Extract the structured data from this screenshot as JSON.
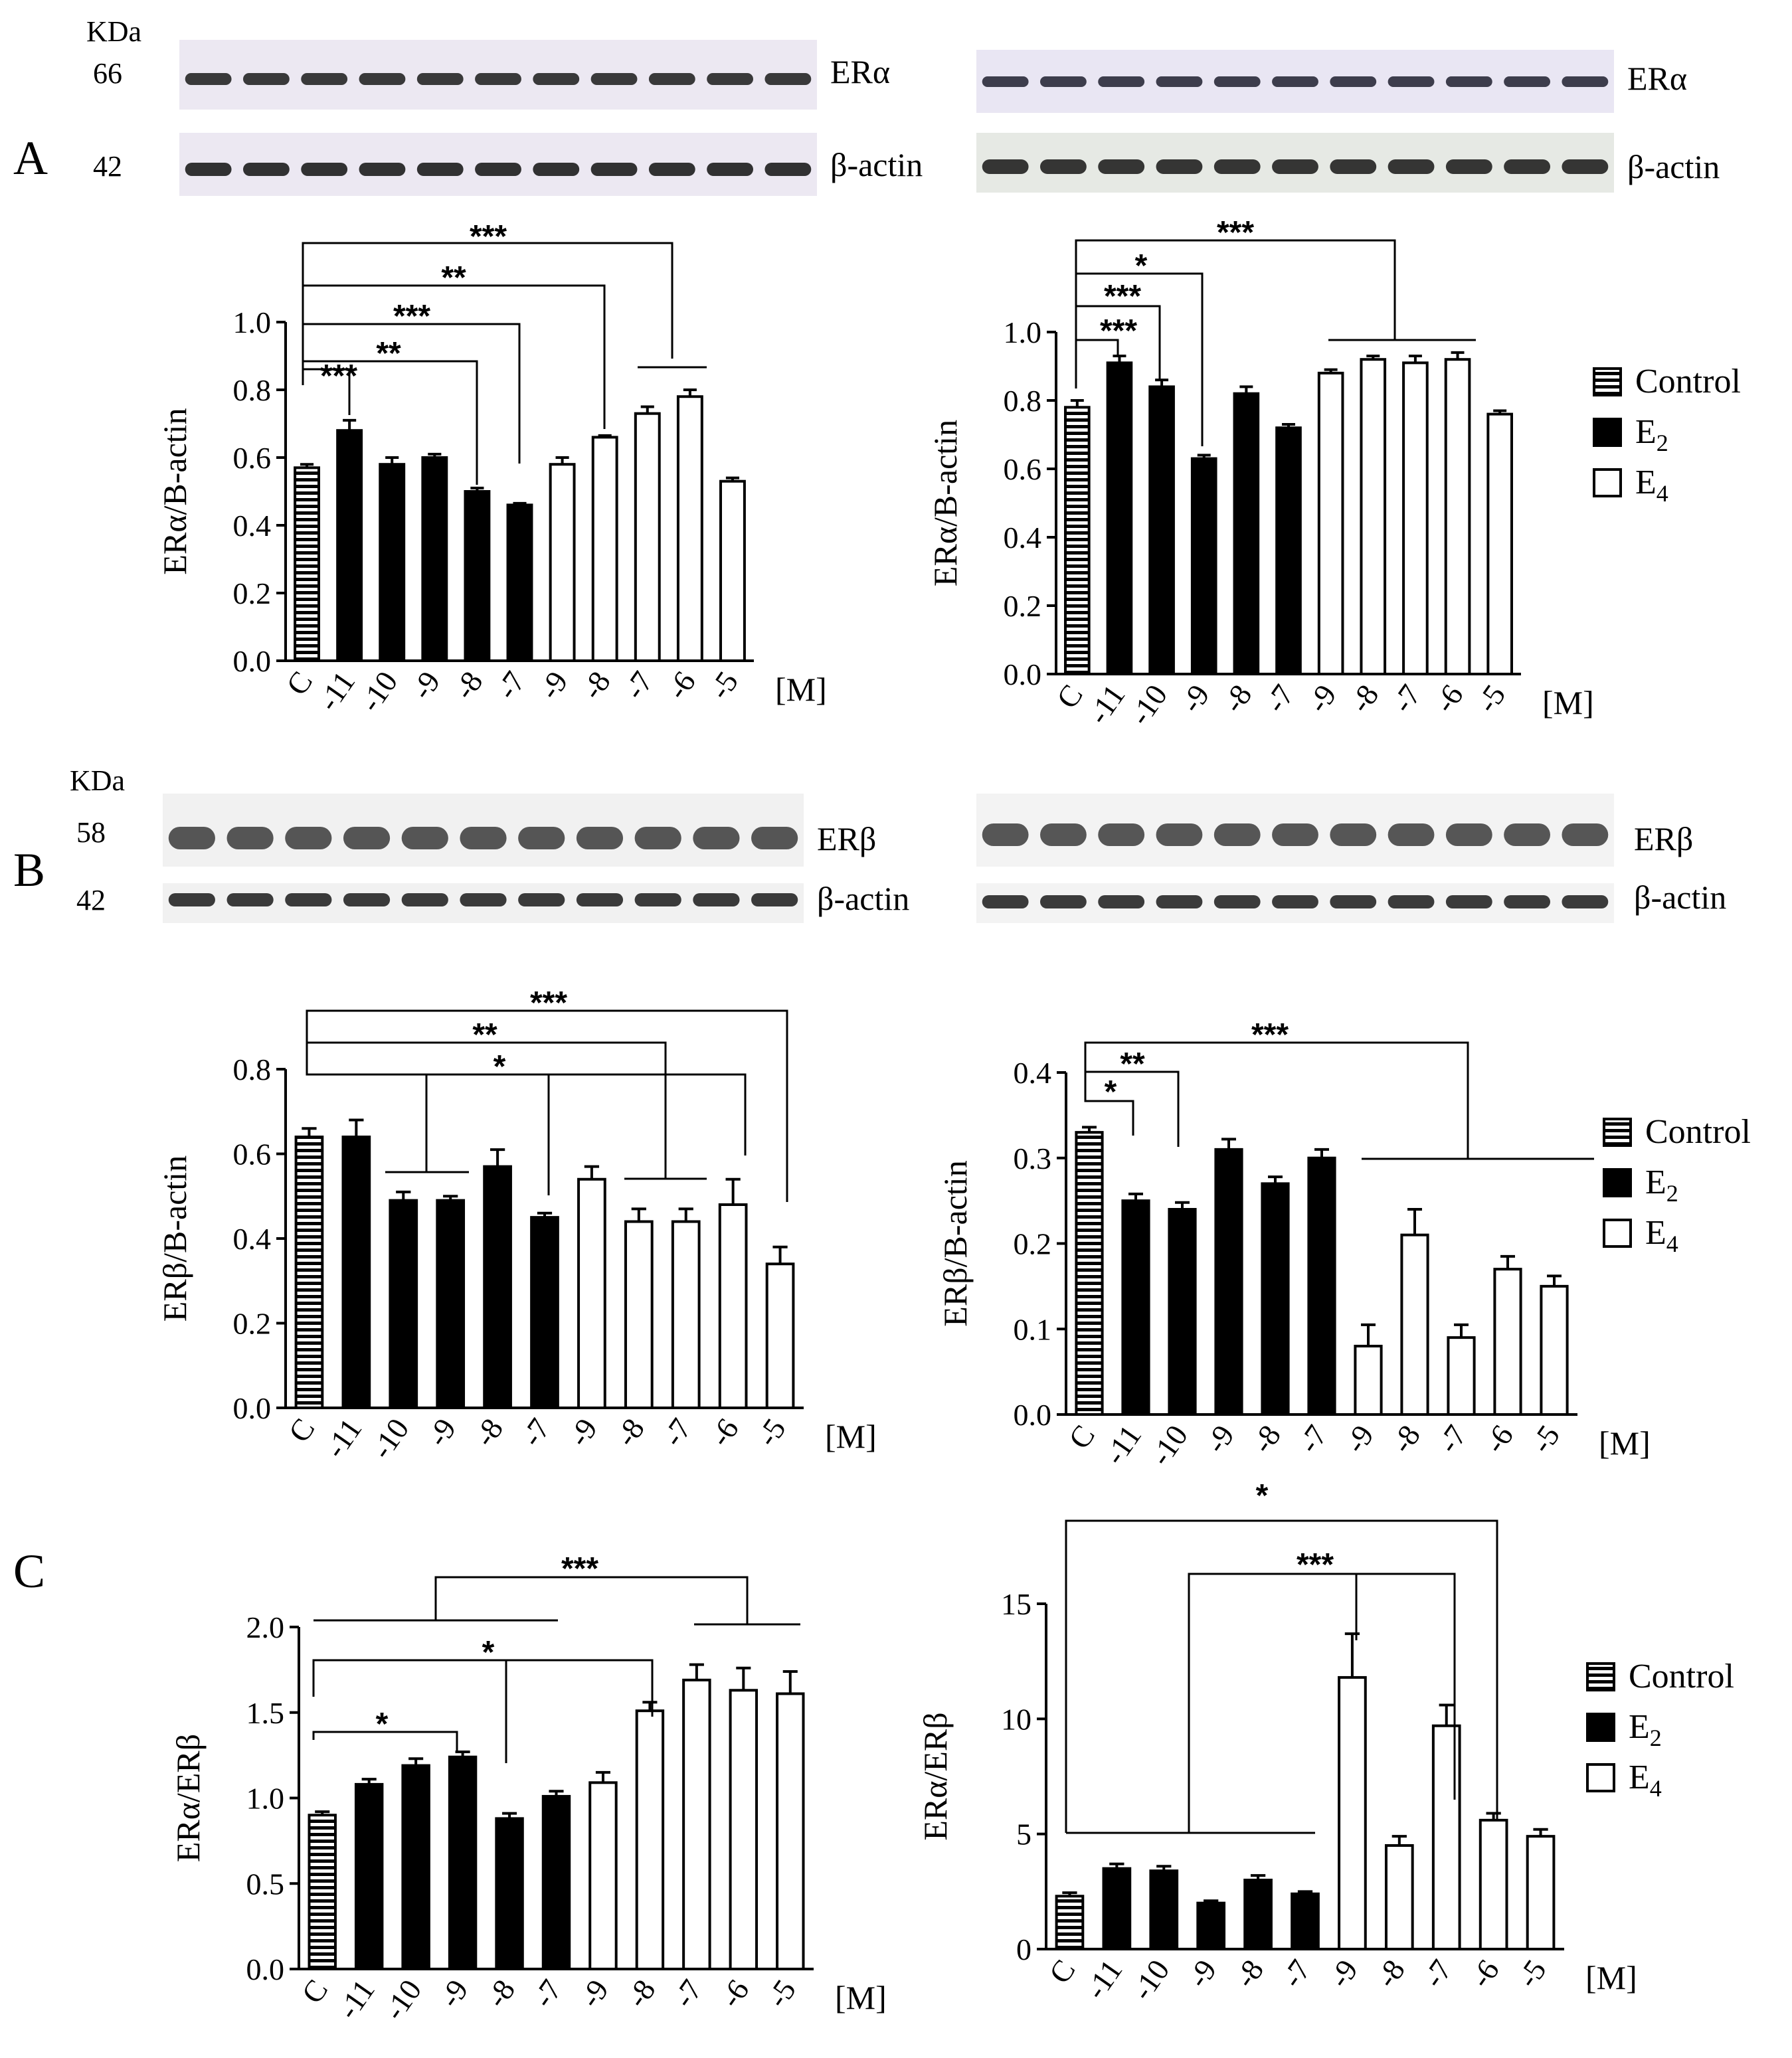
{
  "panel_labels": [
    "A",
    "B",
    "C"
  ],
  "blots": [
    {
      "panel": "A",
      "side": "left",
      "kda_label": "KDa",
      "top_kda": "66",
      "bottom_kda": "42",
      "top_label": "ERα",
      "bottom_label": "β-actin"
    },
    {
      "panel": "A",
      "side": "right",
      "kda_label": "",
      "top_kda": "",
      "bottom_kda": "",
      "top_label": "ERα",
      "bottom_label": "β-actin"
    },
    {
      "panel": "B",
      "side": "left",
      "kda_label": "KDa",
      "top_kda": "58",
      "bottom_kda": "42",
      "top_label": "ERβ",
      "bottom_label": "β-actin"
    },
    {
      "panel": "B",
      "side": "right",
      "kda_label": "",
      "top_kda": "",
      "bottom_kda": "",
      "top_label": "ERβ",
      "bottom_label": "β-actin"
    }
  ],
  "legends": [
    {
      "items": [
        {
          "label": "Control",
          "style": "striped"
        },
        {
          "label": "E",
          "sub": "2",
          "style": "filled"
        },
        {
          "label": "E",
          "sub": "4",
          "style": "open"
        }
      ]
    },
    {
      "items": [
        {
          "label": "Control",
          "style": "striped"
        },
        {
          "label": "E",
          "sub": "2",
          "style": "filled"
        },
        {
          "label": "E",
          "sub": "4",
          "style": "open"
        }
      ]
    },
    {
      "items": [
        {
          "label": "Control",
          "style": "striped"
        },
        {
          "label": "E",
          "sub": "2",
          "style": "filled"
        },
        {
          "label": "E",
          "sub": "4",
          "style": "open"
        }
      ]
    }
  ],
  "chart_data": [
    {
      "id": "A-left",
      "type": "bar",
      "title": "",
      "xlabel": "[M]",
      "ylabel": "ERα/B-actin",
      "categories": [
        "C",
        "-11",
        "-10",
        "-9",
        "-8",
        "-7",
        "-9",
        "-8",
        "-7",
        "-6",
        "-5"
      ],
      "groups": [
        "Control",
        "E2",
        "E2",
        "E2",
        "E2",
        "E2",
        "E4",
        "E4",
        "E4",
        "E4",
        "E4"
      ],
      "values": [
        0.57,
        0.68,
        0.58,
        0.6,
        0.5,
        0.46,
        0.58,
        0.66,
        0.73,
        0.78,
        0.53
      ],
      "errors": [
        0.01,
        0.03,
        0.02,
        0.01,
        0.01,
        0.005,
        0.02,
        0.005,
        0.02,
        0.02,
        0.01
      ],
      "ylim": [
        0,
        1.0
      ],
      "yticks": [
        "0.0",
        "0.2",
        "0.4",
        "0.6",
        "0.8",
        "1.0"
      ],
      "annotations": [
        "***",
        "**",
        "***",
        "**",
        "***"
      ]
    },
    {
      "id": "A-right",
      "type": "bar",
      "title": "",
      "xlabel": "[M]",
      "ylabel": "ERα/B-actin",
      "categories": [
        "C",
        "-11",
        "-10",
        "-9",
        "-8",
        "-7",
        "-9",
        "-8",
        "-7",
        "-6",
        "-5"
      ],
      "groups": [
        "Control",
        "E2",
        "E2",
        "E2",
        "E2",
        "E2",
        "E4",
        "E4",
        "E4",
        "E4",
        "E4"
      ],
      "values": [
        0.78,
        0.91,
        0.84,
        0.63,
        0.82,
        0.72,
        0.88,
        0.92,
        0.91,
        0.92,
        0.76
      ],
      "errors": [
        0.02,
        0.02,
        0.02,
        0.01,
        0.02,
        0.01,
        0.01,
        0.01,
        0.02,
        0.02,
        0.01
      ],
      "ylim": [
        0,
        1.0
      ],
      "yticks": [
        "0.0",
        "0.2",
        "0.4",
        "0.6",
        "0.8",
        "1.0"
      ],
      "annotations": [
        "***",
        "*",
        "***",
        "***"
      ]
    },
    {
      "id": "B-left",
      "type": "bar",
      "title": "",
      "xlabel": "[M]",
      "ylabel": "ERβ/B-actin",
      "categories": [
        "C",
        "-11",
        "-10",
        "-9",
        "-8",
        "-7",
        "-9",
        "-8",
        "-7",
        "-6",
        "-5"
      ],
      "groups": [
        "Control",
        "E2",
        "E2",
        "E2",
        "E2",
        "E2",
        "E4",
        "E4",
        "E4",
        "E4",
        "E4"
      ],
      "values": [
        0.64,
        0.64,
        0.49,
        0.49,
        0.57,
        0.45,
        0.54,
        0.44,
        0.44,
        0.48,
        0.34
      ],
      "errors": [
        0.02,
        0.04,
        0.02,
        0.01,
        0.04,
        0.01,
        0.03,
        0.03,
        0.03,
        0.06,
        0.04
      ],
      "ylim": [
        0,
        0.8
      ],
      "yticks": [
        "0.0",
        "0.2",
        "0.4",
        "0.6",
        "0.8"
      ],
      "annotations": [
        "***",
        "**",
        "*"
      ]
    },
    {
      "id": "B-right",
      "type": "bar",
      "title": "",
      "xlabel": "[M]",
      "ylabel": "ERβ/B-actin",
      "categories": [
        "C",
        "-11",
        "-10",
        "-9",
        "-8",
        "-7",
        "-9",
        "-8",
        "-7",
        "-6",
        "-5"
      ],
      "groups": [
        "Control",
        "E2",
        "E2",
        "E2",
        "E2",
        "E2",
        "E4",
        "E4",
        "E4",
        "E4",
        "E4"
      ],
      "values": [
        0.33,
        0.25,
        0.24,
        0.31,
        0.27,
        0.3,
        0.08,
        0.21,
        0.09,
        0.17,
        0.15
      ],
      "errors": [
        0.006,
        0.008,
        0.008,
        0.012,
        0.008,
        0.01,
        0.025,
        0.03,
        0.015,
        0.015,
        0.012
      ],
      "ylim": [
        0,
        0.4
      ],
      "yticks": [
        "0.0",
        "0.1",
        "0.2",
        "0.3",
        "0.4"
      ],
      "annotations": [
        "***",
        "**",
        "*"
      ]
    },
    {
      "id": "C-left",
      "type": "bar",
      "title": "",
      "xlabel": "[M]",
      "ylabel": "ERα/ERβ",
      "categories": [
        "C",
        "-11",
        "-10",
        "-9",
        "-8",
        "-7",
        "-9",
        "-8",
        "-7",
        "-6",
        "-5"
      ],
      "groups": [
        "Control",
        "E2",
        "E2",
        "E2",
        "E2",
        "E2",
        "E4",
        "E4",
        "E4",
        "E4",
        "E4"
      ],
      "values": [
        0.9,
        1.08,
        1.19,
        1.24,
        0.88,
        1.01,
        1.09,
        1.51,
        1.69,
        1.63,
        1.61
      ],
      "errors": [
        0.02,
        0.03,
        0.04,
        0.03,
        0.03,
        0.03,
        0.06,
        0.05,
        0.09,
        0.13,
        0.13
      ],
      "ylim": [
        0,
        2.0
      ],
      "yticks": [
        "0.0",
        "0.5",
        "1.0",
        "1.5",
        "2.0"
      ],
      "annotations": [
        "***",
        "*",
        "*"
      ]
    },
    {
      "id": "C-right",
      "type": "bar",
      "title": "",
      "xlabel": "[M]",
      "ylabel": "ERα/ERβ",
      "categories": [
        "C",
        "-11",
        "-10",
        "-9",
        "-8",
        "-7",
        "-9",
        "-8",
        "-7",
        "-6",
        "-5"
      ],
      "groups": [
        "Control",
        "E2",
        "E2",
        "E2",
        "E2",
        "E2",
        "E4",
        "E4",
        "E4",
        "E4",
        "E4"
      ],
      "values": [
        2.3,
        3.5,
        3.4,
        2.0,
        3.0,
        2.4,
        11.8,
        4.5,
        9.7,
        5.6,
        4.9
      ],
      "errors": [
        0.15,
        0.2,
        0.2,
        0.1,
        0.2,
        0.1,
        1.9,
        0.4,
        0.9,
        0.3,
        0.3
      ],
      "ylim": [
        0,
        15
      ],
      "yticks": [
        "0",
        "5",
        "10",
        "15"
      ],
      "annotations": [
        "*",
        "***"
      ]
    }
  ]
}
